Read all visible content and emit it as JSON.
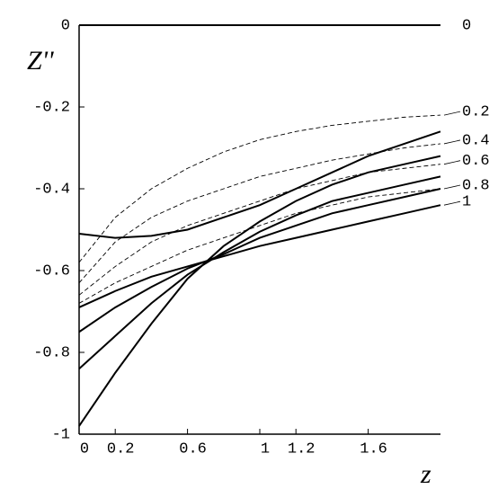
{
  "chart_data": {
    "type": "line",
    "x_label": "z",
    "y_label": "Z''",
    "x": [
      0,
      0.2,
      0.4,
      0.6,
      0.8,
      1.0,
      1.2,
      1.4,
      1.6,
      1.8,
      2.0
    ],
    "xlim": [
      0,
      2
    ],
    "ylim": [
      -1,
      0
    ],
    "xticks": [
      0,
      0.2,
      0.6,
      1,
      1.2,
      1.6
    ],
    "yticks": [
      0,
      -0.2,
      -0.4,
      -0.6,
      -0.8,
      -1
    ],
    "series": [
      {
        "name": "0",
        "color": "#000000",
        "dash": false,
        "values": [
          0,
          0,
          0,
          0,
          0,
          0,
          0,
          0,
          0,
          0,
          0
        ]
      },
      {
        "name": "0.2",
        "color": "#000000",
        "dash": true,
        "values": [
          -0.58,
          -0.47,
          -0.4,
          -0.35,
          -0.31,
          -0.28,
          -0.26,
          -0.245,
          -0.235,
          -0.225,
          -0.22
        ]
      },
      {
        "name": "0.4",
        "color": "#000000",
        "dash": true,
        "values": [
          -0.63,
          -0.53,
          -0.47,
          -0.43,
          -0.4,
          -0.37,
          -0.35,
          -0.33,
          -0.315,
          -0.3,
          -0.29
        ]
      },
      {
        "name": "0.6",
        "color": "#000000",
        "dash": true,
        "values": [
          -0.66,
          -0.59,
          -0.53,
          -0.49,
          -0.46,
          -0.43,
          -0.4,
          -0.38,
          -0.36,
          -0.35,
          -0.34
        ]
      },
      {
        "name": "0.8",
        "color": "#000000",
        "dash": true,
        "values": [
          -0.68,
          -0.63,
          -0.59,
          -0.55,
          -0.52,
          -0.49,
          -0.46,
          -0.44,
          -0.42,
          -0.41,
          -0.4
        ]
      },
      {
        "name": "1",
        "color": "#000000",
        "dash": false,
        "values": [
          -0.69,
          -0.65,
          -0.615,
          -0.59,
          -0.565,
          -0.54,
          -0.52,
          -0.5,
          -0.48,
          -0.46,
          -0.44
        ]
      },
      {
        "color": "#000000",
        "dash": false,
        "values": [
          -0.51,
          -0.52,
          -0.515,
          -0.5,
          -0.47,
          -0.44,
          -0.4,
          -0.36,
          -0.32,
          -0.29,
          -0.26
        ]
      },
      {
        "color": "#000000",
        "dash": false,
        "values": [
          -0.75,
          -0.69,
          -0.64,
          -0.595,
          -0.56,
          -0.52,
          -0.49,
          -0.46,
          -0.44,
          -0.42,
          -0.4
        ]
      },
      {
        "color": "#000000",
        "dash": false,
        "values": [
          -0.84,
          -0.76,
          -0.68,
          -0.61,
          -0.555,
          -0.505,
          -0.465,
          -0.43,
          -0.41,
          -0.39,
          -0.37
        ]
      },
      {
        "color": "#000000",
        "dash": false,
        "values": [
          -0.98,
          -0.85,
          -0.73,
          -0.62,
          -0.54,
          -0.48,
          -0.43,
          -0.39,
          -0.36,
          -0.34,
          -0.32
        ]
      }
    ]
  }
}
